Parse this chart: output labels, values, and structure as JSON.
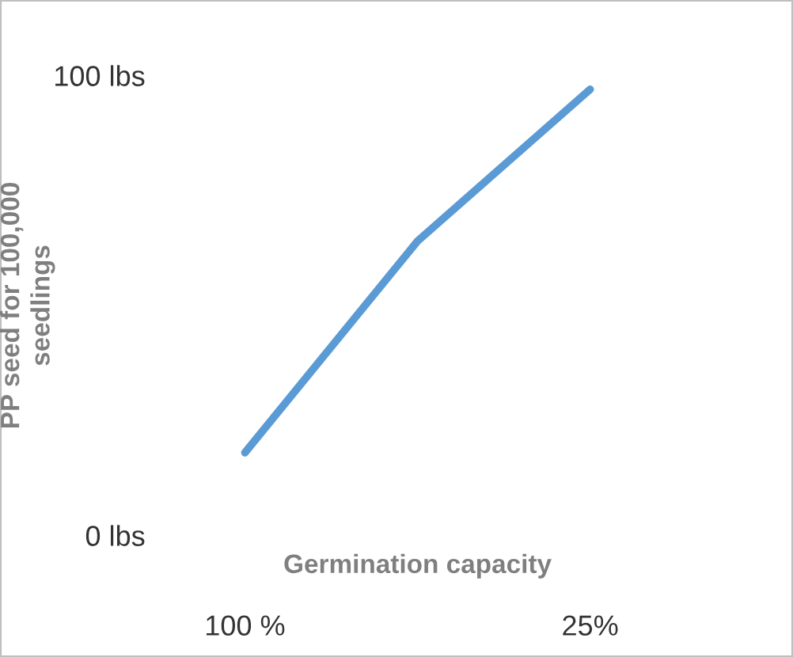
{
  "chart_data": {
    "type": "line",
    "xlabel": "Germination capacity",
    "ylabel": "PP seed for 100,000\nseedlings",
    "categories": [
      "100 %",
      null,
      "25%"
    ],
    "series": [
      {
        "color": "#5b9bd5",
        "values": [
          18,
          64,
          97
        ]
      }
    ],
    "ylim": [
      0,
      100
    ],
    "yticks": [
      {
        "value": 0,
        "label": "0 lbs"
      },
      {
        "value": 100,
        "label": "100 lbs"
      }
    ],
    "grid": false,
    "legend": false,
    "marker": "none",
    "line_style": "solid"
  }
}
